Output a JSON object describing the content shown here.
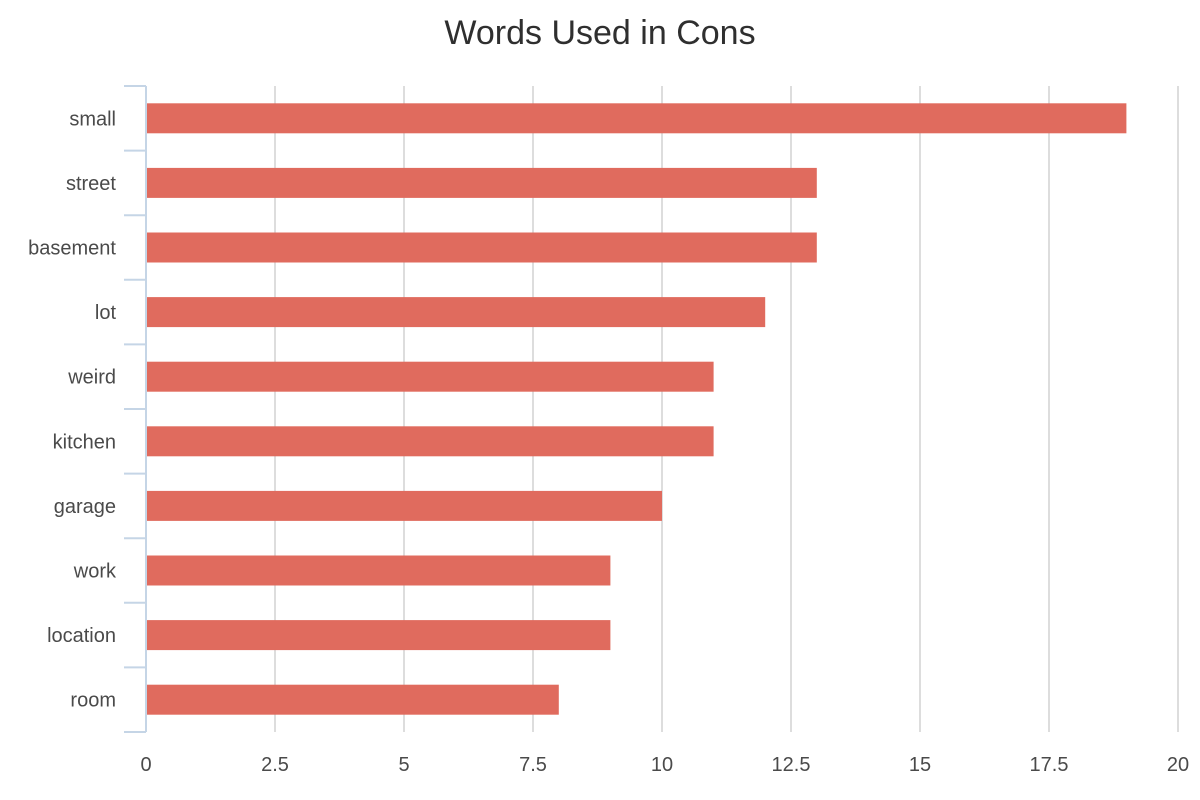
{
  "chart_data": {
    "type": "bar",
    "orientation": "horizontal",
    "title": "Words Used in Cons",
    "xlabel": "",
    "ylabel": "",
    "categories": [
      "small",
      "street",
      "basement",
      "lot",
      "weird",
      "kitchen",
      "garage",
      "work",
      "location",
      "room"
    ],
    "values": [
      19,
      13,
      13,
      12,
      11,
      11,
      10,
      9,
      9,
      8
    ],
    "xlim": [
      0,
      20
    ],
    "xticks": [
      "0",
      "2.5",
      "5",
      "7.5",
      "10",
      "12.5",
      "15",
      "17.5",
      "20"
    ],
    "grid": true,
    "legend": "none",
    "bar_color": "#e06b5e",
    "grid_color": "#dddddd",
    "axis_color": "#c5d5e6"
  }
}
